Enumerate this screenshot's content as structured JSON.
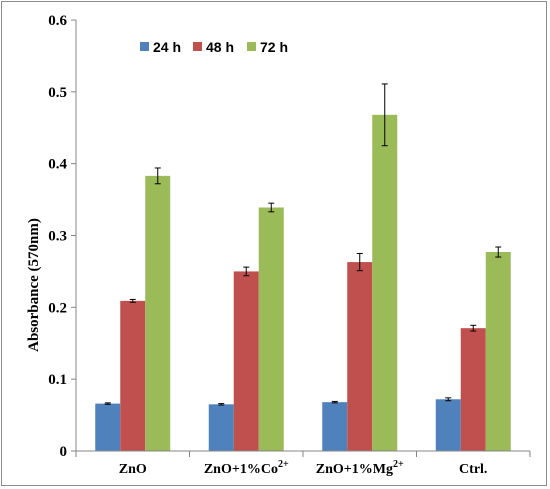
{
  "chart_data": {
    "type": "bar",
    "title": "",
    "xlabel": "",
    "ylabel": "Absorbance (570nm)",
    "ylim": [
      0,
      0.6
    ],
    "yticks": [
      "0",
      "0.1",
      "0.2",
      "0.3",
      "0.4",
      "0.5",
      "0.6"
    ],
    "grid": false,
    "legend_position": "top-center",
    "categories": [
      {
        "base": "ZnO",
        "sup": ""
      },
      {
        "base": "ZnO+1%Co",
        "sup": "2+"
      },
      {
        "base": "ZnO+1%Mg",
        "sup": "2+"
      },
      {
        "base": "Ctrl.",
        "sup": ""
      }
    ],
    "series": [
      {
        "name": "24 h",
        "color": "#4f81bd",
        "values": [
          0.066,
          0.065,
          0.068,
          0.072
        ],
        "errors": [
          0.001,
          0.001,
          0.001,
          0.002
        ]
      },
      {
        "name": "48 h",
        "color": "#c0504d",
        "values": [
          0.209,
          0.25,
          0.263,
          0.171
        ],
        "errors": [
          0.002,
          0.006,
          0.012,
          0.004
        ]
      },
      {
        "name": "72 h",
        "color": "#9bbb59",
        "values": [
          0.383,
          0.339,
          0.468,
          0.277
        ],
        "errors": [
          0.011,
          0.006,
          0.043,
          0.007
        ]
      }
    ]
  }
}
